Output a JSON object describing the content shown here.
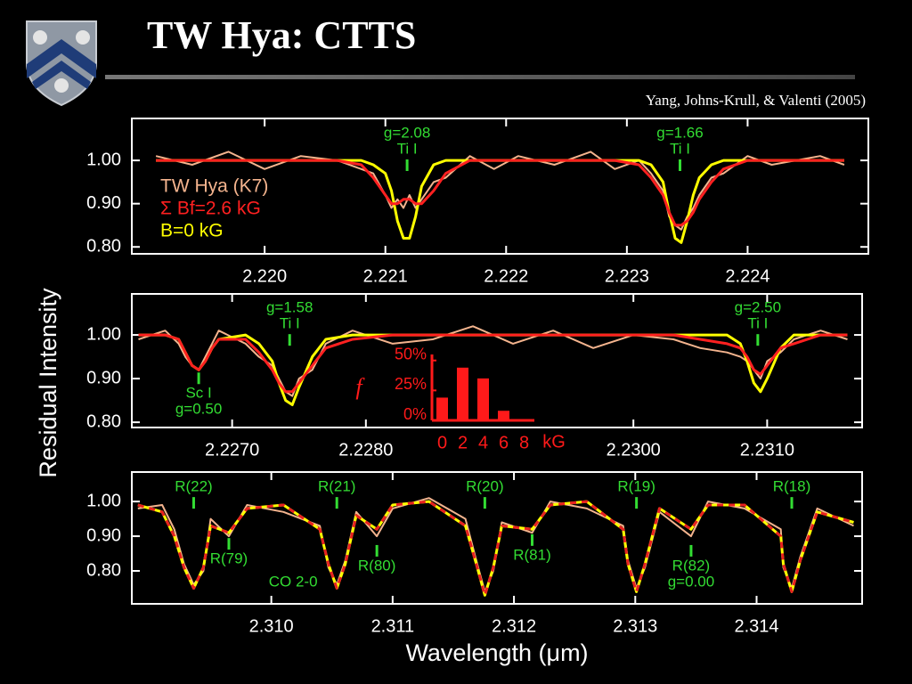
{
  "header": {
    "title": "TW Hya: CTTS",
    "citation": "Yang, Johns-Krull, & Valenti (2005)"
  },
  "axes": {
    "y_label": "Residual Intensity",
    "x_label": "Wavelength (μm)"
  },
  "chart_data": [
    {
      "type": "line",
      "xlim": [
        2.2189,
        2.225
      ],
      "ylim": [
        0.784,
        1.097
      ],
      "xticks": [
        {
          "value": 2.22,
          "label": "2.220"
        },
        2.221,
        2.222,
        2.223,
        2.224
      ],
      "yticks": [
        {
          "value": 1.0,
          "label": "1.00"
        },
        {
          "value": 0.9,
          "label": "0.90"
        },
        {
          "value": 0.8,
          "label": "0.80"
        }
      ],
      "legend": "left",
      "x": [
        2.2191,
        2.2194,
        2.2197,
        2.22,
        2.2203,
        2.2206,
        2.2208,
        2.2209,
        2.221,
        2.22105,
        2.2211,
        2.22115,
        2.2212,
        2.22125,
        2.2213,
        2.2214,
        2.2215,
        2.2217,
        2.2219,
        2.2221,
        2.2224,
        2.2227,
        2.2229,
        2.2231,
        2.2232,
        2.2233,
        2.22335,
        2.2234,
        2.22345,
        2.2235,
        2.22355,
        2.2236,
        2.2237,
        2.2238,
        2.224,
        2.2242,
        2.2244,
        2.2246,
        2.2248
      ],
      "series": [
        {
          "name": "TW Hya (K7)",
          "color": "#f4b48e",
          "values": [
            1.01,
            0.99,
            1.02,
            0.98,
            1.01,
            1.0,
            0.98,
            0.97,
            0.92,
            0.89,
            0.91,
            0.89,
            0.92,
            0.89,
            0.91,
            0.95,
            0.96,
            1.01,
            0.98,
            1.01,
            0.99,
            1.02,
            0.98,
            1.0,
            0.97,
            0.93,
            0.87,
            0.85,
            0.84,
            0.87,
            0.89,
            0.92,
            0.96,
            0.97,
            1.01,
            0.99,
            1.0,
            1.01,
            0.99
          ]
        },
        {
          "name": "B=0 kG",
          "color": "#ffff00",
          "values": [
            1.0,
            1.0,
            1.0,
            1.0,
            1.0,
            1.0,
            1.0,
            0.99,
            0.97,
            0.93,
            0.86,
            0.82,
            0.82,
            0.87,
            0.94,
            0.99,
            1.0,
            1.0,
            1.0,
            1.0,
            1.0,
            1.0,
            1.0,
            1.0,
            0.99,
            0.95,
            0.88,
            0.82,
            0.81,
            0.86,
            0.92,
            0.96,
            0.99,
            1.0,
            1.0,
            1.0,
            1.0,
            1.0,
            1.0
          ]
        },
        {
          "name": "Σ Bf=2.6 kG",
          "color": "#ff2020",
          "values": [
            1.0,
            1.0,
            1.0,
            1.0,
            1.0,
            1.0,
            0.99,
            0.96,
            0.92,
            0.9,
            0.9,
            0.91,
            0.91,
            0.9,
            0.9,
            0.93,
            0.97,
            1.0,
            1.0,
            1.0,
            1.0,
            1.0,
            1.0,
            0.99,
            0.96,
            0.92,
            0.88,
            0.85,
            0.85,
            0.86,
            0.88,
            0.91,
            0.95,
            0.98,
            1.0,
            1.0,
            1.0,
            1.0,
            1.0
          ]
        }
      ],
      "legend_order": [
        0,
        2,
        1
      ],
      "annotation_color": "#33dd33",
      "annotations": [
        {
          "lines": [
            "g=2.08",
            "Ti I"
          ],
          "x": 2.22118,
          "y": 1.062
        },
        {
          "lines": [
            "g=1.66",
            "Ti I"
          ],
          "x": 2.22344,
          "y": 1.062
        }
      ]
    },
    {
      "type": "line",
      "xlim": [
        2.22625,
        2.23171
      ],
      "ylim": [
        0.788,
        1.094
      ],
      "xticks": [
        {
          "value": 2.227,
          "label": "2.2270"
        },
        {
          "value": 2.228,
          "label": "2.2280"
        },
        {
          "value": 2.23,
          "label": "2.2300"
        },
        {
          "value": 2.231,
          "label": "2.2310"
        }
      ],
      "yticks": [
        {
          "value": 1.0,
          "label": "1.00"
        },
        {
          "value": 0.9,
          "label": "0.90"
        },
        {
          "value": 0.8,
          "label": "0.80"
        }
      ],
      "x": [
        2.2263,
        2.2265,
        2.2266,
        2.22665,
        2.2267,
        2.22675,
        2.2268,
        2.22685,
        2.2269,
        2.2271,
        2.2272,
        2.2273,
        2.22735,
        2.2274,
        2.22745,
        2.2275,
        2.2276,
        2.2277,
        2.2279,
        2.2282,
        2.2285,
        2.2288,
        2.2291,
        2.2294,
        2.2297,
        2.23,
        2.2303,
        2.2305,
        2.2307,
        2.2308,
        2.23085,
        2.2309,
        2.23095,
        2.231,
        2.2311,
        2.2312,
        2.2314,
        2.2316
      ],
      "series": [
        {
          "color": "#f4b48e",
          "values": [
            0.99,
            1.01,
            0.98,
            0.95,
            0.93,
            0.92,
            0.95,
            0.98,
            1.01,
            0.98,
            0.95,
            0.93,
            0.9,
            0.87,
            0.86,
            0.9,
            0.92,
            0.98,
            1.01,
            0.98,
            0.99,
            1.02,
            0.98,
            1.01,
            0.97,
            1.0,
            0.99,
            0.97,
            0.96,
            0.95,
            0.94,
            0.92,
            0.9,
            0.94,
            0.96,
            0.99,
            1.01,
            0.99
          ]
        },
        {
          "color": "#ffff00",
          "values": [
            1.0,
            1.0,
            0.99,
            0.96,
            0.93,
            0.92,
            0.94,
            0.97,
            0.99,
            1.0,
            0.98,
            0.94,
            0.89,
            0.85,
            0.84,
            0.88,
            0.95,
            0.99,
            1.0,
            1.0,
            1.0,
            1.0,
            1.0,
            1.0,
            1.0,
            1.0,
            1.0,
            1.0,
            1.0,
            0.98,
            0.94,
            0.89,
            0.87,
            0.9,
            0.97,
            1.0,
            1.0,
            1.0
          ]
        },
        {
          "color": "#ff2020",
          "values": [
            1.0,
            1.0,
            0.99,
            0.96,
            0.93,
            0.92,
            0.94,
            0.97,
            0.99,
            0.99,
            0.96,
            0.92,
            0.89,
            0.87,
            0.87,
            0.89,
            0.93,
            0.97,
            0.99,
            1.0,
            1.0,
            1.0,
            1.0,
            1.0,
            1.0,
            1.0,
            1.0,
            0.99,
            0.98,
            0.97,
            0.95,
            0.92,
            0.91,
            0.93,
            0.97,
            0.98,
            1.0,
            1.0
          ]
        }
      ],
      "annotation_color": "#33dd33",
      "annotations": [
        {
          "lines": [
            "g=1.58",
            "Ti I"
          ],
          "x": 2.22743,
          "y": 1.061
        },
        {
          "lines": [
            "g=2.50",
            "Ti I"
          ],
          "x": 2.23093,
          "y": 1.061
        },
        {
          "lines": [
            "Sc I",
            "g=0.50"
          ],
          "x": 2.22675,
          "y": 0.865
        }
      ]
    },
    {
      "type": "line",
      "xlim": [
        2.30885,
        2.31487
      ],
      "ylim": [
        0.705,
        1.085
      ],
      "xticks": [
        {
          "value": 2.31,
          "label": "2.310"
        },
        2.311,
        2.312,
        2.313,
        2.314
      ],
      "yticks": [
        {
          "value": 1.0,
          "label": "1.00"
        },
        {
          "value": 0.9,
          "label": "0.90"
        },
        {
          "value": 0.8,
          "label": "0.80"
        }
      ],
      "x": [
        2.3089,
        2.3091,
        2.3092,
        2.30928,
        2.30936,
        2.30944,
        2.3095,
        2.30965,
        2.3098,
        2.3101,
        2.3104,
        2.31047,
        2.31054,
        2.31061,
        2.3107,
        2.31087,
        2.311,
        2.3113,
        2.3116,
        2.31169,
        2.31176,
        2.31183,
        2.3119,
        2.31215,
        2.3123,
        2.3126,
        2.3129,
        2.31294,
        2.31301,
        2.31308,
        2.3132,
        2.31346,
        2.3136,
        2.3139,
        2.3142,
        2.31422,
        2.31429,
        2.31436,
        2.3145,
        2.3148
      ],
      "series": [
        {
          "color": "#f4b48e",
          "values": [
            0.98,
            0.99,
            0.92,
            0.82,
            0.76,
            0.8,
            0.95,
            0.9,
            0.99,
            0.97,
            0.93,
            0.81,
            0.76,
            0.83,
            0.97,
            0.9,
            0.98,
            1.01,
            0.95,
            0.83,
            0.74,
            0.8,
            0.94,
            0.91,
            1.0,
            0.98,
            0.93,
            0.83,
            0.75,
            0.81,
            0.97,
            0.9,
            1.0,
            0.98,
            0.92,
            0.81,
            0.75,
            0.84,
            0.98,
            0.93
          ]
        },
        {
          "color": "#ffff00",
          "dash_color": "#e82020",
          "values": [
            0.99,
            0.97,
            0.9,
            0.81,
            0.75,
            0.81,
            0.93,
            0.91,
            0.98,
            0.99,
            0.92,
            0.82,
            0.75,
            0.82,
            0.96,
            0.92,
            0.99,
            1.0,
            0.93,
            0.82,
            0.73,
            0.81,
            0.93,
            0.92,
            0.99,
            1.0,
            0.92,
            0.82,
            0.74,
            0.82,
            0.98,
            0.92,
            0.99,
            0.99,
            0.9,
            0.82,
            0.74,
            0.83,
            0.97,
            0.94
          ]
        }
      ],
      "annotation_color": "#33dd33",
      "annotations": [
        {
          "lines": [
            "R(22)"
          ],
          "x": 2.30936,
          "y": 1.041
        },
        {
          "lines": [
            "R(79)"
          ],
          "x": 2.30965,
          "y": 0.833
        },
        {
          "lines": [
            "R(21)"
          ],
          "x": 2.31054,
          "y": 1.041
        },
        {
          "lines": [
            "R(80)"
          ],
          "x": 2.31087,
          "y": 0.813
        },
        {
          "lines": [
            "R(20)"
          ],
          "x": 2.31176,
          "y": 1.041
        },
        {
          "lines": [
            "R(81)"
          ],
          "x": 2.31215,
          "y": 0.844
        },
        {
          "lines": [
            "R(19)"
          ],
          "x": 2.31301,
          "y": 1.041
        },
        {
          "lines": [
            "R(82)",
            "g=0.00"
          ],
          "x": 2.31346,
          "y": 0.813
        },
        {
          "lines": [
            "R(18)"
          ],
          "x": 2.31429,
          "y": 1.041
        }
      ],
      "note": {
        "text": "CO 2-0",
        "x": 2.31018,
        "y": 0.767
      }
    },
    {
      "type": "bar",
      "categories": [
        "0",
        "2",
        "4",
        "6",
        "8"
      ],
      "values": [
        19,
        44,
        35,
        8,
        0
      ],
      "color": "#ff1a1a",
      "ylim": [
        0,
        55
      ],
      "yticks": [
        {
          "value": 0,
          "label": "0%"
        },
        {
          "value": 25,
          "label": "25%"
        },
        {
          "value": 50,
          "label": "50%"
        }
      ],
      "x_label": "kG",
      "y_label": "f"
    }
  ]
}
